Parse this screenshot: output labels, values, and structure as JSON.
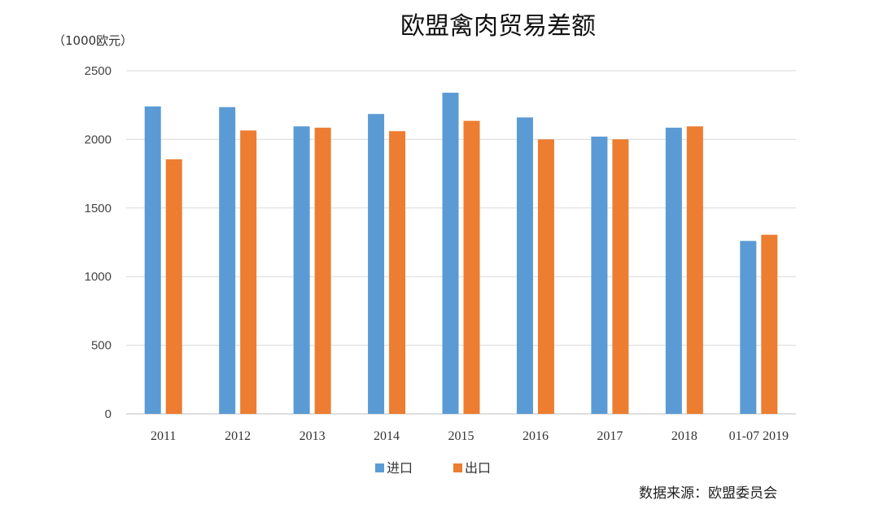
{
  "chart_data": {
    "type": "bar",
    "title": "欧盟禽肉贸易差额",
    "ylabel": "（1000欧元）",
    "xlabel": "",
    "ylim": [
      0,
      2500
    ],
    "yticks": [
      0,
      500,
      1000,
      1500,
      2000,
      2500
    ],
    "categories": [
      "2011",
      "2012",
      "2013",
      "2014",
      "2015",
      "2016",
      "2017",
      "2018",
      "01-07 2019"
    ],
    "series": [
      {
        "name": "进口",
        "color": "#5b9bd5",
        "values": [
          2240,
          2235,
          2095,
          2185,
          2340,
          2160,
          2020,
          2085,
          1260
        ]
      },
      {
        "name": "出口",
        "color": "#ed7d31",
        "values": [
          1855,
          2065,
          2085,
          2060,
          2135,
          2000,
          2000,
          2095,
          1305
        ]
      }
    ],
    "grid": true,
    "legend": "bottom",
    "source": "数据来源：欧盟委员会"
  }
}
